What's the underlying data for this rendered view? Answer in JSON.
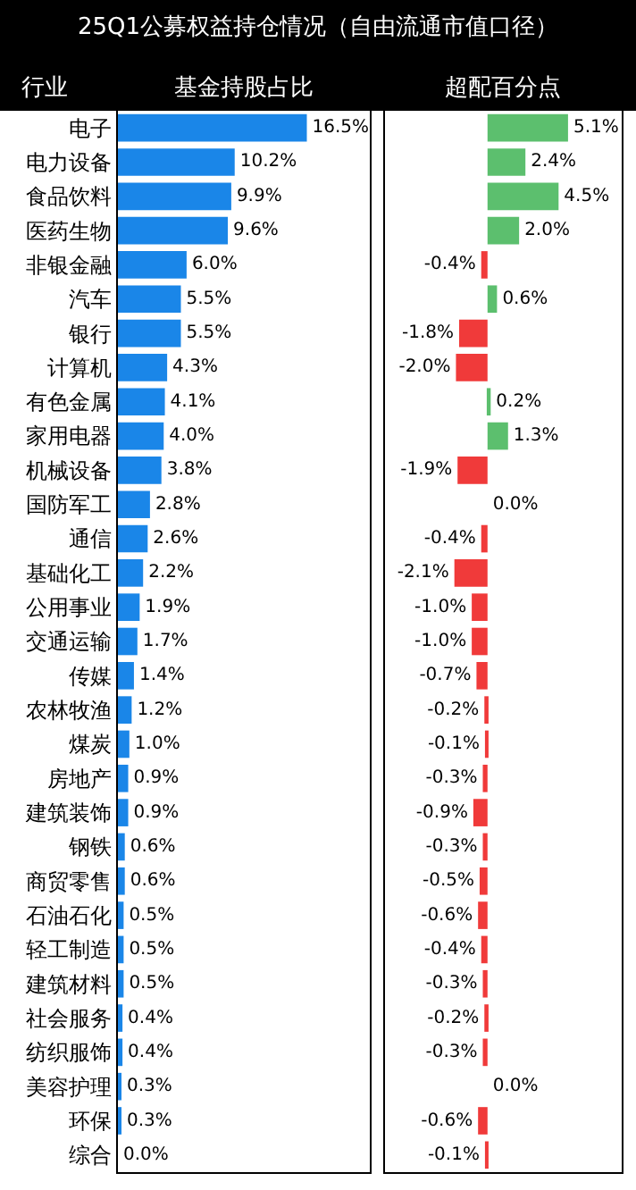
{
  "chart_data": [
    {
      "type": "bar",
      "orientation": "horizontal",
      "title": "25Q1公募权益持仓情况（自由流通市值口径）",
      "ylabel": "行业",
      "xlabel": "基金持股占比",
      "tick_labels": "y",
      "xlim": [
        0,
        22
      ],
      "color": "#1a86e8",
      "categories": [
        "电子",
        "电力设备",
        "食品饮料",
        "医药生物",
        "非银金融",
        "汽车",
        "银行",
        "计算机",
        "有色金属",
        "家用电器",
        "机械设备",
        "国防军工",
        "通信",
        "基础化工",
        "公用事业",
        "交通运输",
        "传媒",
        "农林牧渔",
        "煤炭",
        "房地产",
        "建筑装饰",
        "钢铁",
        "商贸零售",
        "石油石化",
        "轻工制造",
        "建筑材料",
        "社会服务",
        "纺织服饰",
        "美容护理",
        "环保",
        "综合"
      ],
      "values": [
        16.5,
        10.2,
        9.9,
        9.6,
        6.0,
        5.5,
        5.5,
        4.3,
        4.1,
        4.0,
        3.8,
        2.8,
        2.6,
        2.2,
        1.9,
        1.7,
        1.4,
        1.2,
        1.0,
        0.9,
        0.9,
        0.6,
        0.6,
        0.5,
        0.5,
        0.5,
        0.4,
        0.4,
        0.3,
        0.3,
        0.0
      ],
      "value_labels": [
        "16.5%",
        "10.2%",
        "9.9%",
        "9.6%",
        "6.0%",
        "5.5%",
        "5.5%",
        "4.3%",
        "4.1%",
        "4.0%",
        "3.8%",
        "2.8%",
        "2.6%",
        "2.2%",
        "1.9%",
        "1.7%",
        "1.4%",
        "1.2%",
        "1.0%",
        "0.9%",
        "0.9%",
        "0.6%",
        "0.6%",
        "0.5%",
        "0.5%",
        "0.5%",
        "0.4%",
        "0.4%",
        "0.3%",
        "0.3%",
        "0.0%"
      ]
    },
    {
      "type": "bar",
      "orientation": "horizontal",
      "xlabel": "超配百分点",
      "tick_labels": false,
      "xlim": [
        -6.5,
        8.5
      ],
      "values": [
        5.1,
        2.4,
        4.5,
        2.0,
        -0.4,
        0.6,
        -1.8,
        -2.0,
        0.2,
        1.3,
        -1.9,
        0.0,
        -0.4,
        -2.1,
        -1.0,
        -1.0,
        -0.7,
        -0.2,
        -0.1,
        -0.3,
        -0.9,
        -0.3,
        -0.5,
        -0.6,
        -0.4,
        -0.3,
        -0.2,
        -0.3,
        0.0,
        -0.6,
        -0.1
      ],
      "colors": [
        "#5cbf6e",
        "#5cbf6e",
        "#5cbf6e",
        "#5cbf6e",
        "#f03a3a",
        "#5cbf6e",
        "#f03a3a",
        "#f03a3a",
        "#5cbf6e",
        "#5cbf6e",
        "#f03a3a",
        "#5cbf6e",
        "#f03a3a",
        "#f03a3a",
        "#f03a3a",
        "#f03a3a",
        "#f03a3a",
        "#f03a3a",
        "#f03a3a",
        "#f03a3a",
        "#f03a3a",
        "#f03a3a",
        "#f03a3a",
        "#f03a3a",
        "#f03a3a",
        "#f03a3a",
        "#f03a3a",
        "#f03a3a",
        "#5cbf6e",
        "#f03a3a",
        "#f03a3a"
      ],
      "value_labels": [
        "5.1%",
        "2.4%",
        "4.5%",
        "2.0%",
        "-0.4%",
        "0.6%",
        "-1.8%",
        "-2.0%",
        "0.2%",
        "1.3%",
        "-1.9%",
        "0.0%",
        "-0.4%",
        "-2.1%",
        "-1.0%",
        "-1.0%",
        "-0.7%",
        "-0.2%",
        "-0.1%",
        "-0.3%",
        "-0.9%",
        "-0.3%",
        "-0.5%",
        "-0.6%",
        "-0.4%",
        "-0.3%",
        "-0.2%",
        "-0.3%",
        "0.0%",
        "-0.6%",
        "-0.1%"
      ]
    }
  ]
}
